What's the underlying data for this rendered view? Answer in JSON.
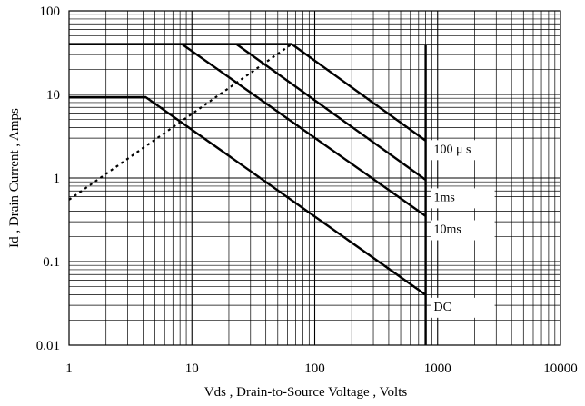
{
  "chart_data": {
    "type": "line",
    "x_scale": "log",
    "y_scale": "log",
    "xlim": [
      1,
      10000
    ],
    "ylim": [
      0.01,
      100
    ],
    "grid": true,
    "xlabel": "Vds , Drain-to-Source Voltage , Volts",
    "ylabel": "Id , Drain Current , Amps",
    "x_ticks": [
      "1",
      "10",
      "100",
      "1000",
      "10000"
    ],
    "y_ticks": [
      "0.01",
      "0.1",
      "1",
      "10",
      "100"
    ],
    "series": [
      {
        "name": "100 μ s",
        "style": "solid",
        "points": [
          [
            1,
            40
          ],
          [
            65,
            40
          ],
          [
            800,
            2.8
          ]
        ]
      },
      {
        "name": "1ms",
        "style": "solid",
        "points": [
          [
            23,
            40
          ],
          [
            800,
            0.95
          ]
        ]
      },
      {
        "name": "10ms",
        "style": "solid",
        "points": [
          [
            8.3,
            40
          ],
          [
            800,
            0.35
          ]
        ]
      },
      {
        "name": "DC",
        "style": "solid",
        "points": [
          [
            1,
            9.3
          ],
          [
            4.2,
            9.3
          ],
          [
            800,
            0.04
          ]
        ]
      },
      {
        "name": "",
        "style": "dotted",
        "points": [
          [
            1,
            0.55
          ],
          [
            65,
            40
          ]
        ]
      },
      {
        "name": "",
        "style": "solid",
        "points": [
          [
            800,
            40
          ],
          [
            800,
            0.01
          ]
        ]
      }
    ],
    "annotations": [
      "100 μ s",
      "1ms",
      "10ms",
      "DC"
    ]
  }
}
